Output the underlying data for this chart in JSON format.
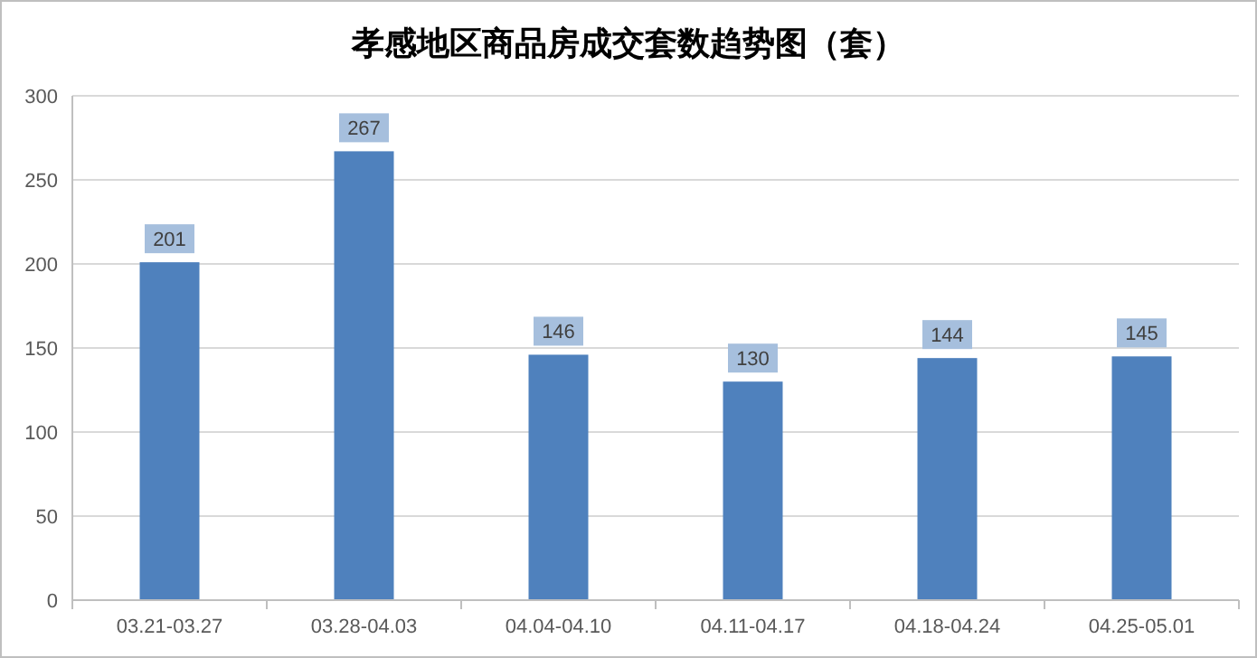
{
  "chart_data": {
    "type": "bar",
    "title": "孝感地区商品房成交套数趋势图（套）",
    "categories": [
      "03.21-03.27",
      "03.28-04.03",
      "04.04-04.10",
      "04.11-04.17",
      "04.18-04.24",
      "04.25-05.01"
    ],
    "values": [
      201,
      267,
      146,
      130,
      144,
      145
    ],
    "color": "#4f81bd",
    "ylim": [
      0,
      300
    ],
    "yticks": [
      0,
      50,
      100,
      150,
      200,
      250,
      300
    ],
    "grid": "y",
    "data_labels": true
  }
}
